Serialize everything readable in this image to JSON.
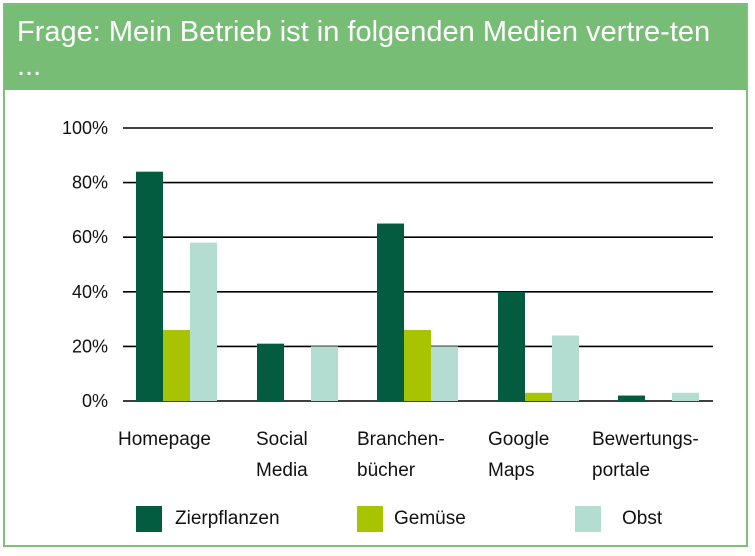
{
  "header": {
    "title": "Frage: Mein Betrieb ist in folgenden Medien vertre-ten ..."
  },
  "chart_data": {
    "type": "bar",
    "title": "Frage: Mein Betrieb ist in folgenden Medien vertre-ten ...",
    "categories": [
      [
        "Homepage"
      ],
      [
        "Social",
        "Media"
      ],
      [
        "Branchen-",
        "bücher"
      ],
      [
        "Google",
        "Maps"
      ],
      [
        "Bewertungs-",
        "portale"
      ]
    ],
    "y_ticks": [
      "0%",
      "20%",
      "40%",
      "60%",
      "80%",
      "100%"
    ],
    "ylim": [
      0,
      100
    ],
    "grid": true,
    "legend_position": "bottom",
    "series": [
      {
        "name": "Zierpflanzen",
        "color": "#035c3f",
        "values": [
          84,
          21,
          65,
          40,
          2
        ]
      },
      {
        "name": "Gemüse",
        "color": "#a8c400",
        "values": [
          26,
          0,
          26,
          3,
          0
        ]
      },
      {
        "name": "Obst",
        "color": "#b3ddd0",
        "values": [
          58,
          20,
          20,
          24,
          3
        ]
      }
    ]
  }
}
